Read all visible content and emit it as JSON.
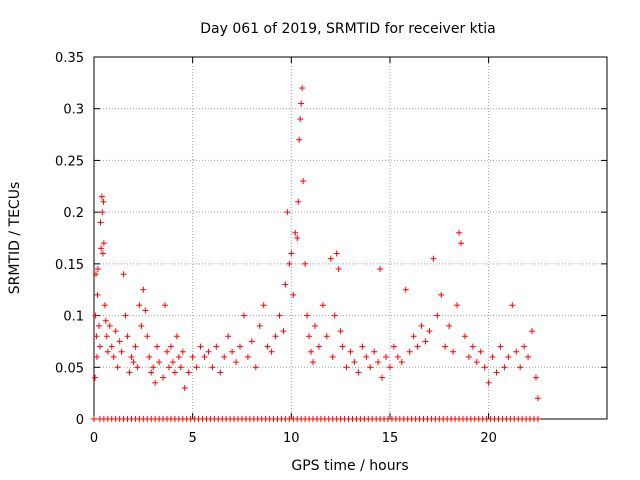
{
  "chart_data": {
    "type": "scatter",
    "title": "Day 061 of 2019, SRMTID for receiver ktia",
    "xlabel": "GPS time / hours",
    "ylabel": "SRMTID / TECUs",
    "xlim": [
      0,
      26
    ],
    "ylim": [
      0,
      0.35
    ],
    "xticks": [
      0,
      5,
      10,
      15,
      20
    ],
    "xtick_labels": [
      "0",
      "5",
      "10",
      "15",
      "20"
    ],
    "yticks": [
      0,
      0.05,
      0.1,
      0.15,
      0.2,
      0.25,
      0.3,
      0.35
    ],
    "ytick_labels": [
      "0",
      "0.05",
      "0.1",
      "0.15",
      "0.2",
      "0.25",
      "0.3",
      "0.35"
    ],
    "grid": true,
    "marker": "plus",
    "color": "#ff0000",
    "series": [
      {
        "name": "SRMTID",
        "points": [
          [
            0.05,
            0.04
          ],
          [
            0.08,
            0.1
          ],
          [
            0.1,
            0.14
          ],
          [
            0.12,
            0.08
          ],
          [
            0.15,
            0.06
          ],
          [
            0.18,
            0.12
          ],
          [
            0.2,
            0.145
          ],
          [
            0.25,
            0.09
          ],
          [
            0.3,
            0.07
          ],
          [
            0.33,
            0.19
          ],
          [
            0.36,
            0.165
          ],
          [
            0.4,
            0.215
          ],
          [
            0.42,
            0.2
          ],
          [
            0.45,
            0.16
          ],
          [
            0.48,
            0.21
          ],
          [
            0.5,
            0.17
          ],
          [
            0.55,
            0.11
          ],
          [
            0.6,
            0.095
          ],
          [
            0.65,
            0.08
          ],
          [
            0.7,
            0.065
          ],
          [
            0.8,
            0.09
          ],
          [
            0.9,
            0.07
          ],
          [
            1.0,
            0.06
          ],
          [
            1.1,
            0.085
          ],
          [
            1.2,
            0.05
          ],
          [
            1.3,
            0.075
          ],
          [
            1.4,
            0.065
          ],
          [
            1.5,
            0.14
          ],
          [
            1.6,
            0.1
          ],
          [
            1.7,
            0.08
          ],
          [
            1.8,
            0.045
          ],
          [
            1.9,
            0.06
          ],
          [
            2.0,
            0.055
          ],
          [
            2.1,
            0.07
          ],
          [
            2.2,
            0.05
          ],
          [
            2.3,
            0.11
          ],
          [
            2.4,
            0.09
          ],
          [
            2.5,
            0.125
          ],
          [
            2.6,
            0.105
          ],
          [
            2.7,
            0.08
          ],
          [
            2.8,
            0.06
          ],
          [
            2.9,
            0.045
          ],
          [
            3.0,
            0.05
          ],
          [
            3.1,
            0.035
          ],
          [
            3.2,
            0.07
          ],
          [
            3.3,
            0.055
          ],
          [
            3.5,
            0.04
          ],
          [
            3.6,
            0.11
          ],
          [
            3.7,
            0.065
          ],
          [
            3.8,
            0.05
          ],
          [
            3.9,
            0.07
          ],
          [
            4.0,
            0.055
          ],
          [
            4.1,
            0.045
          ],
          [
            4.2,
            0.08
          ],
          [
            4.3,
            0.06
          ],
          [
            4.4,
            0.05
          ],
          [
            4.5,
            0.065
          ],
          [
            4.6,
            0.03
          ],
          [
            4.8,
            0.045
          ],
          [
            5.0,
            0.06
          ],
          [
            5.2,
            0.05
          ],
          [
            5.4,
            0.07
          ],
          [
            5.6,
            0.06
          ],
          [
            5.8,
            0.065
          ],
          [
            6.0,
            0.05
          ],
          [
            6.2,
            0.07
          ],
          [
            6.4,
            0.045
          ],
          [
            6.6,
            0.06
          ],
          [
            6.8,
            0.08
          ],
          [
            7.0,
            0.065
          ],
          [
            7.2,
            0.055
          ],
          [
            7.4,
            0.07
          ],
          [
            7.6,
            0.1
          ],
          [
            7.8,
            0.06
          ],
          [
            8.0,
            0.075
          ],
          [
            8.2,
            0.05
          ],
          [
            8.4,
            0.09
          ],
          [
            8.6,
            0.11
          ],
          [
            8.8,
            0.07
          ],
          [
            9.0,
            0.065
          ],
          [
            9.2,
            0.08
          ],
          [
            9.4,
            0.1
          ],
          [
            9.6,
            0.085
          ],
          [
            9.7,
            0.13
          ],
          [
            9.8,
            0.2
          ],
          [
            9.9,
            0.15
          ],
          [
            10.0,
            0.16
          ],
          [
            10.1,
            0.12
          ],
          [
            10.2,
            0.18
          ],
          [
            10.3,
            0.175
          ],
          [
            10.35,
            0.21
          ],
          [
            10.4,
            0.27
          ],
          [
            10.45,
            0.29
          ],
          [
            10.5,
            0.305
          ],
          [
            10.55,
            0.32
          ],
          [
            10.6,
            0.23
          ],
          [
            10.7,
            0.15
          ],
          [
            10.8,
            0.1
          ],
          [
            10.9,
            0.08
          ],
          [
            11.0,
            0.065
          ],
          [
            11.1,
            0.055
          ],
          [
            11.2,
            0.09
          ],
          [
            11.4,
            0.07
          ],
          [
            11.6,
            0.11
          ],
          [
            11.8,
            0.08
          ],
          [
            12.0,
            0.155
          ],
          [
            12.1,
            0.06
          ],
          [
            12.2,
            0.1
          ],
          [
            12.3,
            0.16
          ],
          [
            12.4,
            0.145
          ],
          [
            12.5,
            0.085
          ],
          [
            12.6,
            0.07
          ],
          [
            12.8,
            0.05
          ],
          [
            13.0,
            0.065
          ],
          [
            13.2,
            0.055
          ],
          [
            13.4,
            0.045
          ],
          [
            13.6,
            0.07
          ],
          [
            13.8,
            0.06
          ],
          [
            14.0,
            0.05
          ],
          [
            14.2,
            0.065
          ],
          [
            14.4,
            0.055
          ],
          [
            14.5,
            0.145
          ],
          [
            14.6,
            0.04
          ],
          [
            14.8,
            0.06
          ],
          [
            15.0,
            0.05
          ],
          [
            15.2,
            0.07
          ],
          [
            15.4,
            0.06
          ],
          [
            15.6,
            0.055
          ],
          [
            15.8,
            0.125
          ],
          [
            16.0,
            0.065
          ],
          [
            16.2,
            0.08
          ],
          [
            16.4,
            0.07
          ],
          [
            16.6,
            0.09
          ],
          [
            16.8,
            0.075
          ],
          [
            17.0,
            0.085
          ],
          [
            17.2,
            0.155
          ],
          [
            17.4,
            0.1
          ],
          [
            17.6,
            0.12
          ],
          [
            17.8,
            0.07
          ],
          [
            18.0,
            0.09
          ],
          [
            18.2,
            0.065
          ],
          [
            18.4,
            0.11
          ],
          [
            18.5,
            0.18
          ],
          [
            18.6,
            0.17
          ],
          [
            18.8,
            0.08
          ],
          [
            19.0,
            0.06
          ],
          [
            19.2,
            0.07
          ],
          [
            19.4,
            0.055
          ],
          [
            19.6,
            0.065
          ],
          [
            19.8,
            0.05
          ],
          [
            20.0,
            0.035
          ],
          [
            20.2,
            0.06
          ],
          [
            20.4,
            0.045
          ],
          [
            20.6,
            0.07
          ],
          [
            20.8,
            0.05
          ],
          [
            21.0,
            0.06
          ],
          [
            21.2,
            0.11
          ],
          [
            21.4,
            0.065
          ],
          [
            21.6,
            0.05
          ],
          [
            21.8,
            0.07
          ],
          [
            22.0,
            0.06
          ],
          [
            22.2,
            0.085
          ],
          [
            22.4,
            0.04
          ],
          [
            22.5,
            0.02
          ]
        ],
        "zeros": [
          0.0,
          0.3,
          0.5,
          0.7,
          0.9,
          1.1,
          1.3,
          1.5,
          1.7,
          1.9,
          2.1,
          2.3,
          2.5,
          2.7,
          2.9,
          3.1,
          3.3,
          3.5,
          3.7,
          3.9,
          4.1,
          4.3,
          4.5,
          4.7,
          4.9,
          5.1,
          5.3,
          5.5,
          5.7,
          5.9,
          6.1,
          6.3,
          6.5,
          6.7,
          6.9,
          7.1,
          7.3,
          7.5,
          7.7,
          7.9,
          8.1,
          8.3,
          8.5,
          8.7,
          8.9,
          9.1,
          9.3,
          9.5,
          9.7,
          9.9,
          10.1,
          10.3,
          10.5,
          10.7,
          10.9,
          11.1,
          11.3,
          11.5,
          11.7,
          11.9,
          12.1,
          12.3,
          12.5,
          12.7,
          12.9,
          13.1,
          13.3,
          13.5,
          13.7,
          13.9,
          14.1,
          14.3,
          14.5,
          14.7,
          14.9,
          15.1,
          15.3,
          15.5,
          15.7,
          15.9,
          16.1,
          16.3,
          16.5,
          16.7,
          16.9,
          17.1,
          17.3,
          17.5,
          17.7,
          17.9,
          18.1,
          18.3,
          18.5,
          18.7,
          18.9,
          19.1,
          19.3,
          19.5,
          19.7,
          19.9,
          20.1,
          20.3,
          20.5,
          20.7,
          20.9,
          21.1,
          21.3,
          21.5,
          21.7,
          21.9,
          22.1,
          22.3,
          22.5
        ]
      }
    ]
  }
}
